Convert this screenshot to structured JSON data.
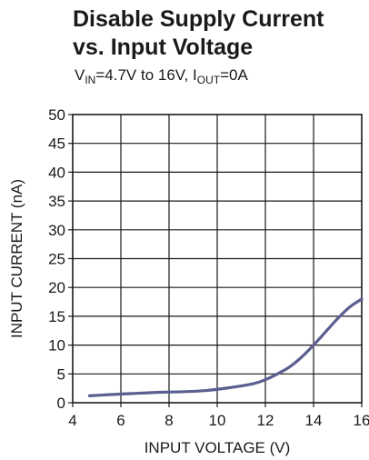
{
  "chart_data": {
    "type": "line",
    "title_line1": "Disable Supply Current",
    "title_line2": "vs. Input Voltage",
    "subtitle": {
      "v_label": "V",
      "v_sub": "IN",
      "v_text": "=4.7V to 16V, ",
      "i_label": "I",
      "i_sub": "OUT",
      "i_text": "=0A"
    },
    "xlabel": "INPUT VOLTAGE (V)",
    "ylabel": "INPUT CURRENT (nA)",
    "xlim": [
      4,
      16
    ],
    "ylim": [
      0,
      50
    ],
    "xticks": [
      4,
      6,
      8,
      10,
      12,
      14,
      16
    ],
    "yticks": [
      0,
      5,
      10,
      15,
      20,
      25,
      30,
      35,
      40,
      45,
      50
    ],
    "grid": true,
    "line_color": "#5a5f8f",
    "series": [
      {
        "x": [
          4.7,
          5.5,
          6.5,
          7.5,
          8.5,
          9.5,
          10.5,
          11.5,
          12.0,
          12.5,
          13.0,
          13.5,
          14.0,
          14.5,
          15.0,
          15.5,
          16.0
        ],
        "values": [
          1.2,
          1.4,
          1.6,
          1.8,
          1.9,
          2.1,
          2.6,
          3.3,
          4.0,
          5.0,
          6.2,
          7.9,
          10.0,
          12.3,
          14.6,
          16.6,
          18.0
        ]
      }
    ]
  }
}
